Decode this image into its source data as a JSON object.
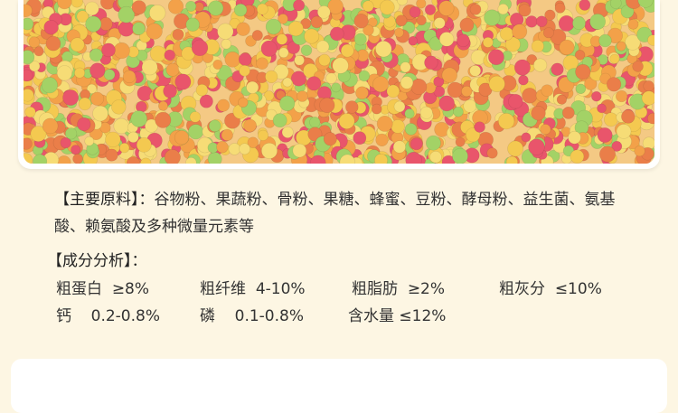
{
  "ingredients": {
    "label": "【主要原料】：",
    "text": "谷物粉、果蔬粉、骨粉、果糖、蜂蜜、豆粉、酵母粉、益生菌、氨基酸、赖氨酸及多种微量元素等"
  },
  "analysis": {
    "title": "【成分分析】：",
    "items": [
      {
        "name": "粗蛋白",
        "value": "≥8%"
      },
      {
        "name": "粗纤维",
        "value": "4-10%"
      },
      {
        "name": "粗脂肪",
        "value": "≥2%"
      },
      {
        "name": "粗灰分",
        "value": "≤10%"
      },
      {
        "name": "钙",
        "value": "0.2-0.8%"
      },
      {
        "name": "磷",
        "value": "0.1-0.8%"
      },
      {
        "name": "含水量",
        "value": "≤12%"
      }
    ]
  },
  "colors": {
    "background": "#fdf6e3",
    "pellet_colors": [
      "#f29a3a",
      "#f4c542",
      "#e8475f",
      "#9ccf5a",
      "#f6d96b",
      "#e9743a"
    ]
  }
}
